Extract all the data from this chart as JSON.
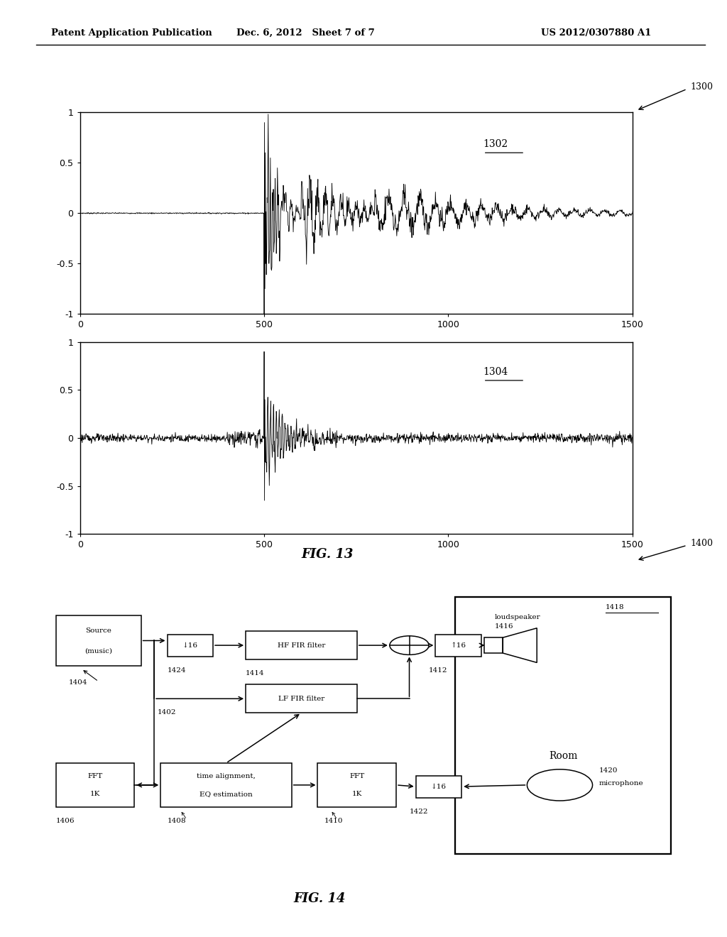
{
  "header_left": "Patent Application Publication",
  "header_center": "Dec. 6, 2012   Sheet 7 of 7",
  "header_right": "US 2012/0307880 A1",
  "fig13_label": "FIG. 13",
  "fig14_label": "FIG. 14",
  "fig13_number": "1300",
  "plot1_label": "1302",
  "plot2_label": "1304",
  "fig14_number": "1400",
  "background": "#ffffff",
  "line_color": "#000000"
}
